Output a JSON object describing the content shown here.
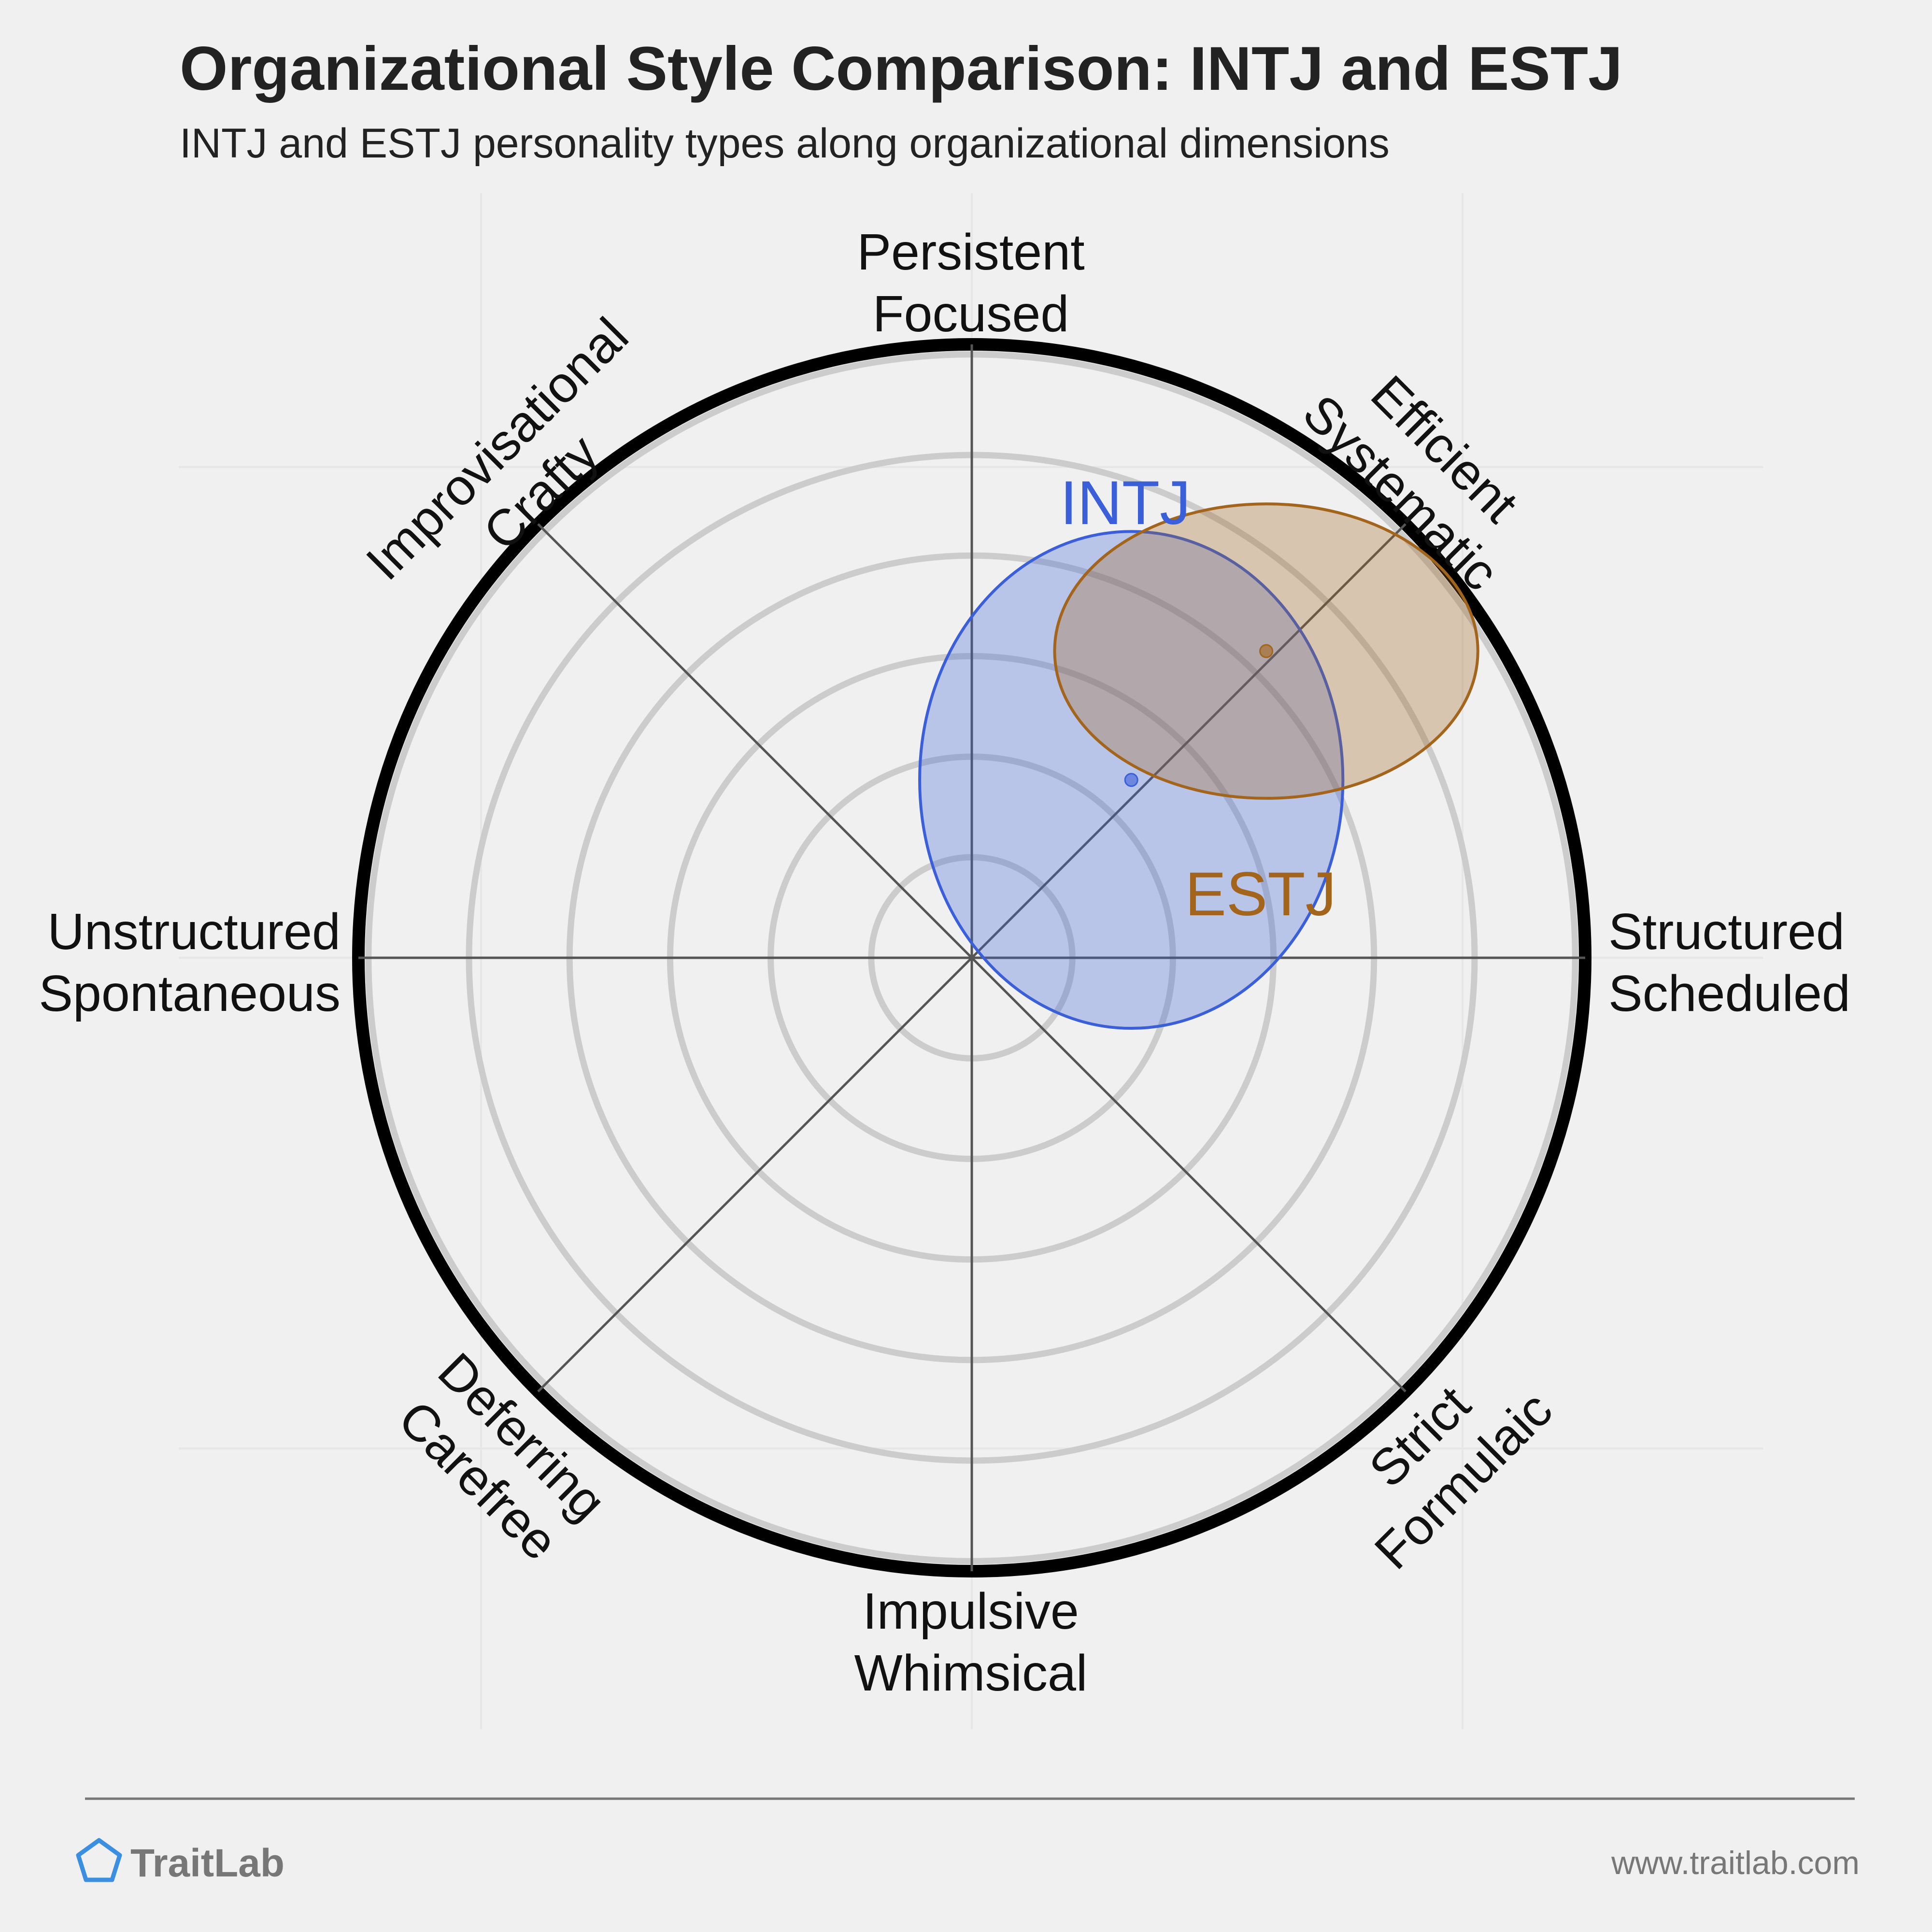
{
  "header": {
    "title": "Organizational Style Comparison: INTJ and ESTJ",
    "subtitle": "INTJ and ESTJ personality types along organizational dimensions"
  },
  "chart_data": {
    "type": "scatter",
    "title": "Organizational Style Comparison: INTJ and ESTJ",
    "subtitle": "INTJ and ESTJ personality types along organizational dimensions",
    "x_axis": {
      "negative_label": [
        "Unstructured",
        "Spontaneous"
      ],
      "positive_label": [
        "Structured",
        "Scheduled"
      ]
    },
    "y_axis": {
      "negative_label": [
        "Impulsive",
        "Whimsical"
      ],
      "positive_label": [
        "Persistent",
        "Focused"
      ]
    },
    "diagonal_axes": [
      {
        "label": [
          "Efficient",
          "Systematic"
        ],
        "direction": "upper-right"
      },
      {
        "label": [
          "Improvisational",
          "Crafty"
        ],
        "direction": "upper-left"
      },
      {
        "label": [
          "Deferring",
          "Carefree"
        ],
        "direction": "lower-left"
      },
      {
        "label": [
          "Strict",
          "Formulaic"
        ],
        "direction": "lower-right"
      }
    ],
    "range": [
      -1,
      1
    ],
    "grid": true,
    "rings": 6,
    "series": [
      {
        "name": "INTJ",
        "x": 0.26,
        "y": 0.29,
        "spread_x": 0.69,
        "spread_y": 0.81,
        "color": "#3a5fd9"
      },
      {
        "name": "ESTJ",
        "x": 0.48,
        "y": 0.5,
        "spread_x": 0.69,
        "spread_y": 0.48,
        "color": "#a3651c"
      }
    ]
  },
  "footer": {
    "brand": "TraitLab",
    "url": "www.traitlab.com",
    "brand_icon": "pentagon-icon"
  },
  "colors": {
    "background": "#f0f0f0",
    "intj": "#3a5fd9",
    "estj": "#a3651c",
    "ring": "#cccccc",
    "outer_ring": "#000000"
  }
}
